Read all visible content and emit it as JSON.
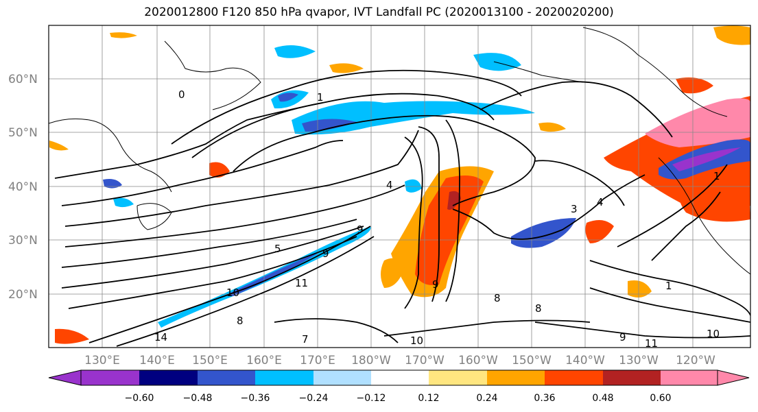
{
  "title": "2020012800 F120 850 hPa qvapor, IVT Landfall PC (2020013100 - 2020020200)",
  "map": {
    "lat_labels": [
      "60°N",
      "50°N",
      "40°N",
      "30°N",
      "20°N"
    ],
    "lon_labels": [
      "130°E",
      "140°E",
      "150°E",
      "160°E",
      "170°E",
      "180°W",
      "170°W",
      "160°W",
      "150°W",
      "140°W",
      "130°W",
      "120°W"
    ],
    "contour_labels": [
      "0",
      "1",
      "4",
      "3",
      "4",
      "5",
      "9",
      "9",
      "11",
      "9",
      "10",
      "14",
      "8",
      "7",
      "8",
      "1",
      "1",
      "10",
      "9",
      "11",
      "8",
      "10"
    ]
  },
  "colorbar": {
    "ticks": [
      "−0.60",
      "−0.48",
      "−0.36",
      "−0.24",
      "−0.12",
      "0.12",
      "0.24",
      "0.36",
      "0.48",
      "0.60"
    ],
    "colors": [
      "#9933cc",
      "#000080",
      "#3355cc",
      "#00bfff",
      "#b0e0ff",
      "#ffffff",
      "#ffe680",
      "#ffa500",
      "#ff4500",
      "#b22222",
      "#ff88aa"
    ]
  }
}
